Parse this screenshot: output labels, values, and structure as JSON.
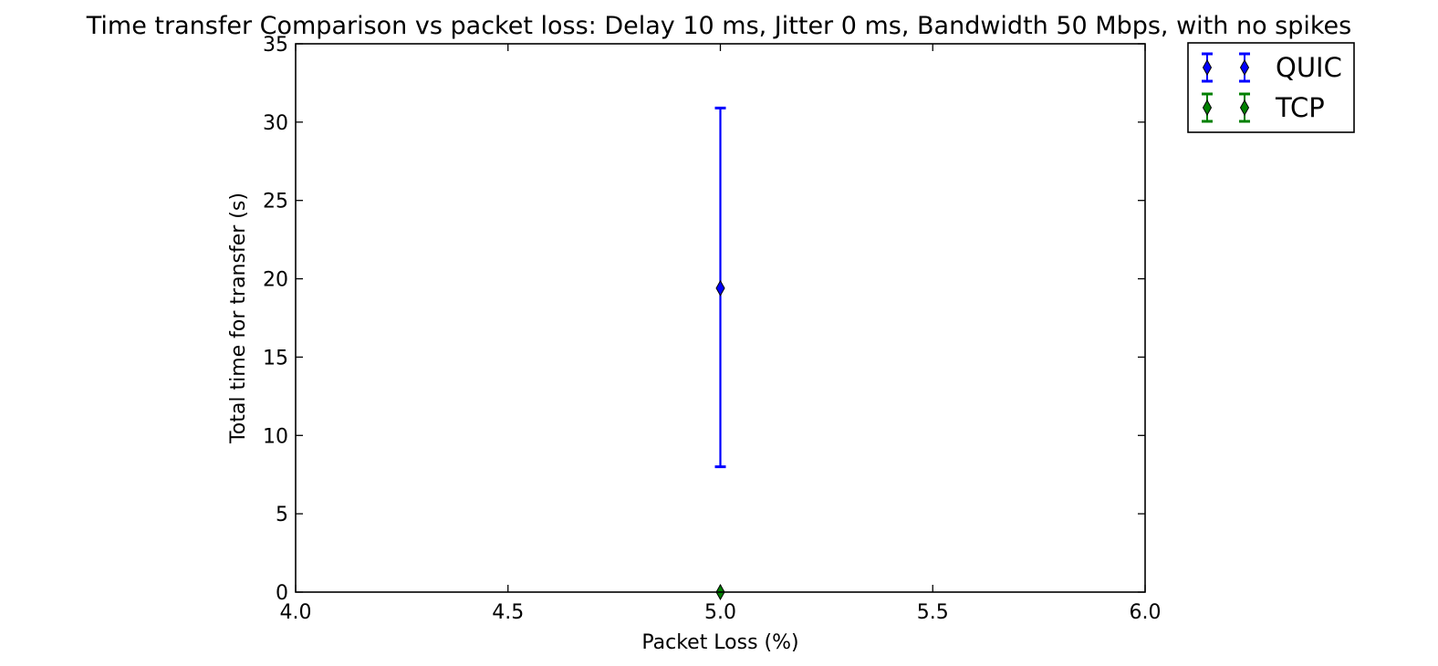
{
  "chart_data": {
    "type": "scatter",
    "title": "Time transfer Comparison vs packet loss: Delay 10 ms, Jitter 0 ms, Bandwidth 50 Mbps, with no spikes",
    "xlabel": "Packet Loss (%)",
    "ylabel": "Total time for transfer (s)",
    "xlim": [
      4.0,
      6.0
    ],
    "ylim": [
      0,
      35
    ],
    "xticks": [
      "4.0",
      "4.5",
      "5.0",
      "5.5",
      "6.0"
    ],
    "yticks": [
      "0",
      "5",
      "10",
      "15",
      "20",
      "25",
      "30",
      "35"
    ],
    "grid": false,
    "legend_position": "outside-top-right",
    "marker": "thin-diamond",
    "error_bars": true,
    "series": [
      {
        "name": "QUIC",
        "color": "#0000ff",
        "points": [
          {
            "x": 5.0,
            "y": 19.4,
            "yerr_low": 8.0,
            "yerr_high": 30.9
          }
        ]
      },
      {
        "name": "TCP",
        "color": "#008000",
        "points": [
          {
            "x": 5.0,
            "y": 0.0,
            "yerr_low": 0.0,
            "yerr_high": 0.0
          }
        ]
      }
    ]
  }
}
